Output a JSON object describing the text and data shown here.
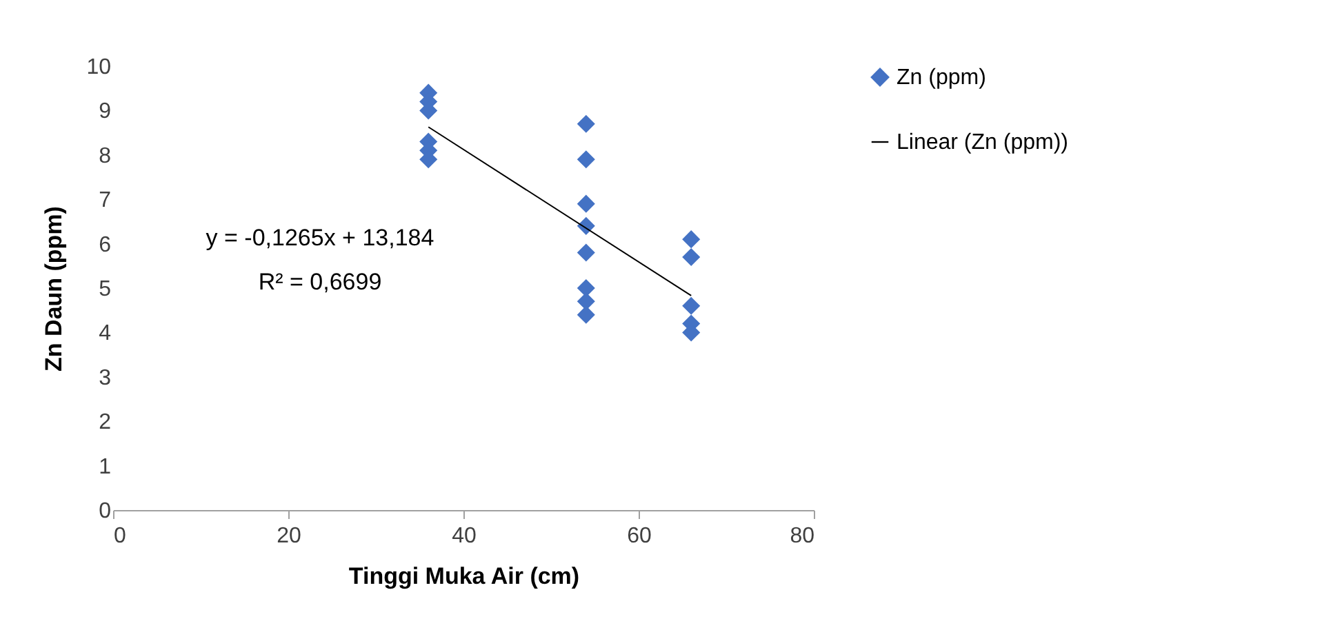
{
  "chart_data": {
    "type": "scatter",
    "xlabel": "Tinggi Muka Air (cm)",
    "ylabel": "Zn Daun (ppm)",
    "xlim": [
      0,
      80
    ],
    "xticks": [
      0,
      20,
      40,
      60,
      80
    ],
    "ylim": [
      0,
      10
    ],
    "yticks": [
      0,
      1,
      2,
      3,
      4,
      5,
      6,
      7,
      8,
      9,
      10
    ],
    "legend": "right",
    "grid": false,
    "annotations": [
      "y = -0,1265x + 13,184",
      "R² = 0,6699"
    ],
    "series": [
      {
        "name": "Zn (ppm)",
        "color": "#4472c4",
        "marker": "diamond",
        "x": [
          36,
          36,
          36,
          36,
          36,
          36,
          54,
          54,
          54,
          54,
          54,
          54,
          54,
          54,
          66,
          66,
          66,
          66,
          66
        ],
        "values": [
          9.4,
          9.2,
          9.0,
          8.3,
          8.1,
          7.9,
          8.7,
          7.9,
          6.9,
          6.4,
          5.8,
          5.0,
          4.7,
          4.4,
          6.1,
          5.7,
          4.6,
          4.2,
          4.0
        ]
      },
      {
        "name": "Linear (Zn (ppm))",
        "type": "line",
        "marker": "none",
        "color": "#000000",
        "x": [
          36,
          66
        ],
        "values": [
          8.63,
          4.83
        ]
      }
    ]
  }
}
